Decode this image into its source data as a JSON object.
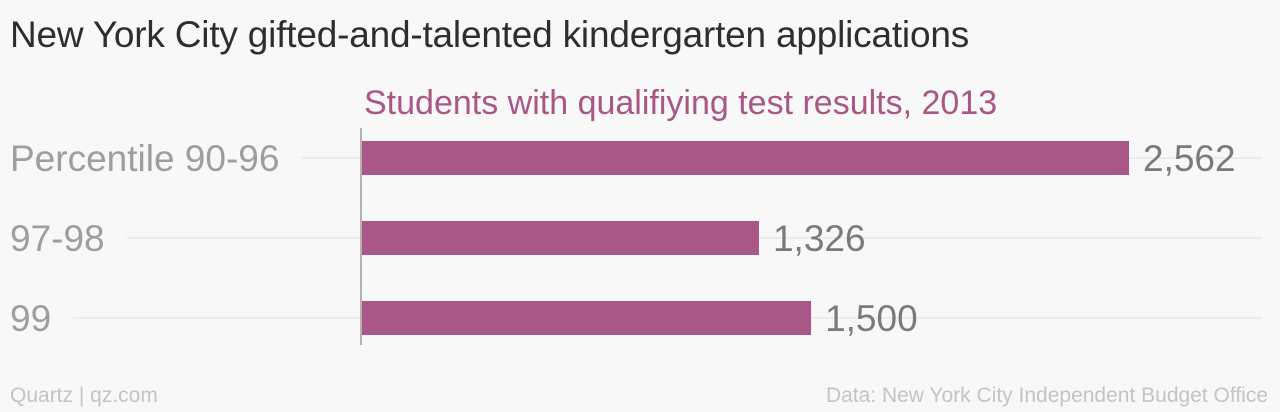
{
  "title": "New York City gifted-and-talented kindergarten applications",
  "footer": {
    "credit": "Quartz | qz.com",
    "source": "Data: New York City Independent Budget Office"
  },
  "colors": {
    "bar": "#a85787",
    "series_label": "#a85787",
    "category_text": "#9e9e9e",
    "value_text": "#7a7a7a",
    "gridline": "#e8e8e8",
    "axis": "#9a9a9a"
  },
  "chart_data": {
    "type": "bar",
    "orientation": "horizontal",
    "categories": [
      "Percentile 90-96",
      "97-98",
      "99"
    ],
    "series": [
      {
        "name": "Students with qualifiying test results, 2013",
        "values": [
          2562,
          1326,
          1500
        ],
        "value_labels": [
          "2,562",
          "1,326",
          "1,500"
        ]
      }
    ],
    "xlim": [
      0,
      2562
    ],
    "grid": true,
    "legend": "top"
  }
}
